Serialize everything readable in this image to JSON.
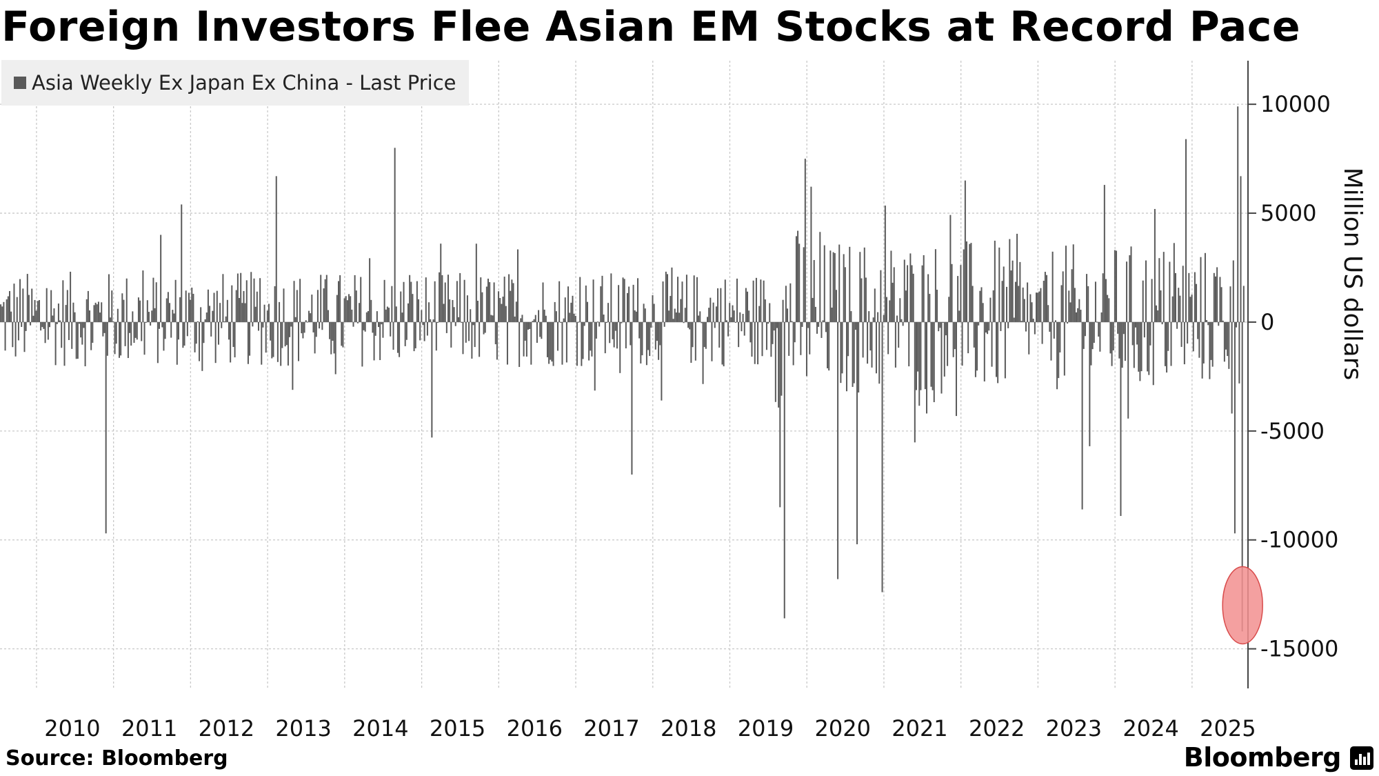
{
  "title": "Foreign Investors Flee Asian EM Stocks at Record Pace",
  "source": "Source: Bloomberg",
  "brand": "Bloomberg",
  "brand_icon": "bloomberg-terminal-icon",
  "colors": {
    "bar": "#595959",
    "grid": "#c8c8c8",
    "axis": "#444444",
    "highlight_fill": "#f28f8f",
    "highlight_stroke": "#d84b4b",
    "legend_bg": "#efefef"
  },
  "chart_data": {
    "type": "bar",
    "legend": "Asia Weekly Ex Japan Ex China - Last Price",
    "legend_position": "top-left",
    "ylabel": "Million US dollars",
    "y_axis_side": "right",
    "ylim": [
      -16500,
      12000
    ],
    "yticks": [
      10000,
      5000,
      0,
      -5000,
      -10000,
      -15000
    ],
    "ytick_labels": [
      "10000",
      "5000",
      "0",
      "-5000",
      "-10000",
      "-15000"
    ],
    "xlim": [
      2009.75,
      2025.95
    ],
    "xticks": [
      2010,
      2011,
      2012,
      2013,
      2014,
      2015,
      2016,
      2017,
      2018,
      2019,
      2020,
      2021,
      2022,
      2023,
      2024,
      2025
    ],
    "xtick_labels": [
      "2010",
      "2011",
      "2012",
      "2013",
      "2014",
      "2015",
      "2016",
      "2017",
      "2018",
      "2019",
      "2020",
      "2021",
      "2022",
      "2023",
      "2024",
      "2025"
    ],
    "grid": true,
    "frequency": "weekly",
    "start": 2009.76,
    "end": 2025.9,
    "notable_values": [
      {
        "x": 2011.12,
        "y": -9700
      },
      {
        "x": 2012.1,
        "y": 5400
      },
      {
        "x": 2013.33,
        "y": 6700
      },
      {
        "x": 2014.88,
        "y": 8000
      },
      {
        "x": 2015.35,
        "y": -5300
      },
      {
        "x": 2017.95,
        "y": -7000
      },
      {
        "x": 2019.87,
        "y": -8500
      },
      {
        "x": 2019.93,
        "y": -13600
      },
      {
        "x": 2020.2,
        "y": 7500
      },
      {
        "x": 2020.62,
        "y": -11800
      },
      {
        "x": 2020.88,
        "y": -10200
      },
      {
        "x": 2021.2,
        "y": -12400
      },
      {
        "x": 2022.28,
        "y": 6500
      },
      {
        "x": 2023.8,
        "y": -8600
      },
      {
        "x": 2024.3,
        "y": -8900
      },
      {
        "x": 2025.15,
        "y": 8400
      },
      {
        "x": 2025.78,
        "y": -9700
      },
      {
        "x": 2025.82,
        "y": 9900
      },
      {
        "x": 2025.85,
        "y": 6700
      },
      {
        "x": 2025.88,
        "y": -14200
      }
    ],
    "highlight": {
      "x": 2025.88,
      "y": -13000,
      "label": ""
    }
  }
}
